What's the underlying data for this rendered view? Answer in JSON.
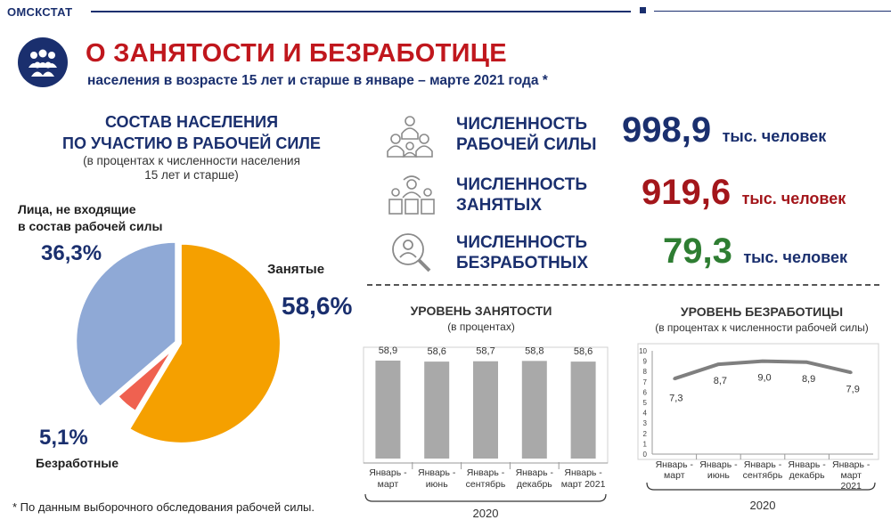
{
  "header": {
    "org": "ОМСКСТАТ"
  },
  "title": "О ЗАНЯТОСТИ И БЕЗРАБОТИЦЕ",
  "subtitle": "населения в возрасте 15 лет и старше в январе – марте 2021 года *",
  "pie_section": {
    "title_line1": "СОСТАВ НАСЕЛЕНИЯ",
    "title_line2": "ПО УЧАСТИЮ В РАБОЧЕЙ СИЛЕ",
    "note_line1": "(в процентах к численности населения",
    "note_line2": "15 лет и старше)"
  },
  "pie_labels": {
    "outside_line1": "Лица, не входящие",
    "outside_line2": "в состав рабочей силы",
    "outside_pct": "36,3%",
    "employed": "Занятые",
    "employed_pct": "58,6%",
    "unemployed_pct": "5,1%",
    "unemployed": "Безработные"
  },
  "kpis": [
    {
      "line1": "ЧИСЛЕННОСТЬ",
      "line2": "РАБОЧЕЙ СИЛЫ",
      "value": "998,9",
      "unit": "тыс. человек",
      "color": "#1a2f6e",
      "icon": "group-icon"
    },
    {
      "line1": "ЧИСЛЕННОСТЬ",
      "line2": "ЗАНЯТЫХ",
      "value": "919,6",
      "unit": "тыс. человек",
      "color": "#a3161b",
      "icon": "workers-icon"
    },
    {
      "line1": "ЧИСЛЕННОСТЬ",
      "line2": "БЕЗРАБОТНЫХ",
      "value": "79,3",
      "unit": "тыс. человек",
      "color": "#2e7d32",
      "icon": "search-person-icon"
    }
  ],
  "employment_chart": {
    "title": "УРОВЕНЬ ЗАНЯТОСТИ",
    "subtitle": "(в процентах)",
    "year": "2020"
  },
  "unemployment_chart": {
    "title": "УРОВЕНЬ БЕЗРАБОТИЦЫ",
    "subtitle": "(в процентах к численности рабочей силы)",
    "year": "2020"
  },
  "footnote": "* По данным выборочного обследования рабочей силы.",
  "colors": {
    "navy": "#1a2f6e",
    "red": "#c0171d",
    "pie_employed": "#f5a000",
    "pie_outside": "#8fa9d6",
    "pie_unemployed": "#ef6150",
    "bar": "#a9a9a9",
    "line": "#7f7f7f"
  },
  "chart_data": [
    {
      "type": "pie",
      "title": "СОСТАВ НАСЕЛЕНИЯ ПО УЧАСТИЮ В РАБОЧЕЙ СИЛЕ",
      "categories": [
        "Занятые",
        "Безработные",
        "Лица, не входящие в состав рабочей силы"
      ],
      "values": [
        58.6,
        5.1,
        36.3
      ],
      "data_labels": [
        "58,6%",
        "5,1%",
        "36,3%"
      ]
    },
    {
      "type": "bar",
      "title": "УРОВЕНЬ ЗАНЯТОСТИ",
      "subtitle": "(в процентах)",
      "categories": [
        [
          "Январь -",
          "март"
        ],
        [
          "Январь -",
          "июнь"
        ],
        [
          "Январь -",
          "сентябрь"
        ],
        [
          "Январь -",
          "декабрь"
        ],
        [
          "Январь -",
          "март 2021"
        ]
      ],
      "values": [
        58.9,
        58.6,
        58.7,
        58.8,
        58.6
      ],
      "data_labels": [
        "58,9",
        "58,6",
        "58,7",
        "58,8",
        "58,6"
      ],
      "group_label": "2020"
    },
    {
      "type": "line",
      "title": "УРОВЕНЬ БЕЗРАБОТИЦЫ",
      "subtitle": "(в процентах к численности рабочей силы)",
      "categories": [
        [
          "Январь -",
          "март"
        ],
        [
          "Январь -",
          "июнь"
        ],
        [
          "Январь -",
          "сентябрь"
        ],
        [
          "Январь -",
          "декабрь"
        ],
        [
          "Январь -",
          "март",
          "2021"
        ]
      ],
      "values": [
        7.3,
        8.7,
        9.0,
        8.9,
        7.9
      ],
      "data_labels": [
        "7,3",
        "8,7",
        "9,0",
        "8,9",
        "7,9"
      ],
      "ylim": [
        0,
        10
      ],
      "yticks": [
        "0",
        "1",
        "2",
        "3",
        "4",
        "5",
        "6",
        "7",
        "8",
        "9",
        "10"
      ],
      "group_label": "2020"
    }
  ]
}
